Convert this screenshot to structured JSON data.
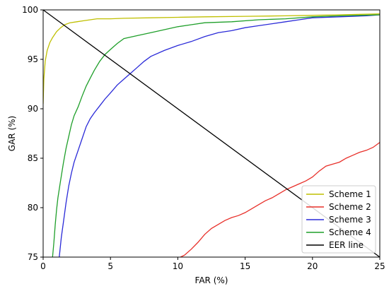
{
  "chart_data": {
    "type": "line",
    "title": "",
    "xlabel": "FAR (%)",
    "ylabel": "GAR (%)",
    "xlim": [
      0,
      25
    ],
    "ylim": [
      75,
      100
    ],
    "xticks": [
      "0",
      "5",
      "10",
      "15",
      "20",
      "25"
    ],
    "yticks": [
      "75",
      "80",
      "85",
      "90",
      "95",
      "100"
    ],
    "grid": false,
    "legend": "bottom-right",
    "series": [
      {
        "name": "Scheme 1",
        "color": "#bfbf00",
        "x": [
          0,
          0.05,
          0.15,
          0.3,
          0.5,
          0.7,
          1.0,
          1.3,
          1.6,
          2.0,
          2.5,
          3.0,
          3.5,
          4.0,
          5.0,
          6.0,
          8.0,
          10.0,
          12.0,
          15.0,
          18.0,
          20.0,
          22.0,
          25.0
        ],
        "y": [
          90.5,
          93.0,
          94.8,
          95.9,
          96.7,
          97.2,
          97.8,
          98.2,
          98.5,
          98.7,
          98.8,
          98.9,
          99.0,
          99.1,
          99.1,
          99.15,
          99.2,
          99.25,
          99.3,
          99.35,
          99.4,
          99.45,
          99.5,
          99.6
        ]
      },
      {
        "name": "Scheme 2",
        "color": "#e8302a",
        "x": [
          10.2,
          10.5,
          11.0,
          11.5,
          12.0,
          12.5,
          13.0,
          13.5,
          14.0,
          14.5,
          15.0,
          15.5,
          16.0,
          16.5,
          17.0,
          17.5,
          18.0,
          18.5,
          19.0,
          19.5,
          20.0,
          20.5,
          21.0,
          21.5,
          22.0,
          22.5,
          23.0,
          23.5,
          24.0,
          24.5,
          25.0
        ],
        "y": [
          75.0,
          75.2,
          75.8,
          76.5,
          77.3,
          77.9,
          78.3,
          78.7,
          79.0,
          79.2,
          79.5,
          79.9,
          80.3,
          80.7,
          81.0,
          81.4,
          81.8,
          82.1,
          82.4,
          82.7,
          83.1,
          83.7,
          84.2,
          84.4,
          84.6,
          85.0,
          85.3,
          85.6,
          85.8,
          86.1,
          86.6
        ]
      },
      {
        "name": "Scheme 3",
        "color": "#2a2ad8",
        "x": [
          1.2,
          1.35,
          1.5,
          1.7,
          1.9,
          2.1,
          2.3,
          2.6,
          2.9,
          3.2,
          3.5,
          3.8,
          4.2,
          4.6,
          5.0,
          5.5,
          6.0,
          6.5,
          7.0,
          7.5,
          8.0,
          9.0,
          10.0,
          11.0,
          12.0,
          13.0,
          14.0,
          15.0,
          16.0,
          17.0,
          18.0,
          19.0,
          20.0,
          22.0,
          24.0,
          25.0
        ],
        "y": [
          75.0,
          77.0,
          78.5,
          80.5,
          82.2,
          83.5,
          84.6,
          85.8,
          87.0,
          88.2,
          89.0,
          89.6,
          90.3,
          91.0,
          91.6,
          92.4,
          93.0,
          93.6,
          94.2,
          94.8,
          95.3,
          95.9,
          96.4,
          96.8,
          97.3,
          97.7,
          97.9,
          98.2,
          98.4,
          98.6,
          98.8,
          99.0,
          99.2,
          99.3,
          99.4,
          99.5
        ]
      },
      {
        "name": "Scheme 4",
        "color": "#1f9f2a",
        "x": [
          0.7,
          0.8,
          0.9,
          1.0,
          1.1,
          1.3,
          1.5,
          1.7,
          1.9,
          2.1,
          2.3,
          2.6,
          2.9,
          3.2,
          3.5,
          3.8,
          4.2,
          4.6,
          5.0,
          5.5,
          6.0,
          7.0,
          8.0,
          9.0,
          10.0,
          11.0,
          12.0,
          14.0,
          16.0,
          18.0,
          20.0,
          22.0,
          25.0
        ],
        "y": [
          75.0,
          76.5,
          78.3,
          79.8,
          81.0,
          82.8,
          84.5,
          86.0,
          87.2,
          88.4,
          89.3,
          90.2,
          91.3,
          92.3,
          93.1,
          93.9,
          94.8,
          95.5,
          96.0,
          96.6,
          97.1,
          97.4,
          97.7,
          98.0,
          98.3,
          98.5,
          98.7,
          98.8,
          99.0,
          99.1,
          99.3,
          99.4,
          99.5
        ]
      },
      {
        "name": "EER line",
        "color": "#000000",
        "x": [
          0,
          25
        ],
        "y": [
          100,
          75
        ]
      }
    ]
  }
}
